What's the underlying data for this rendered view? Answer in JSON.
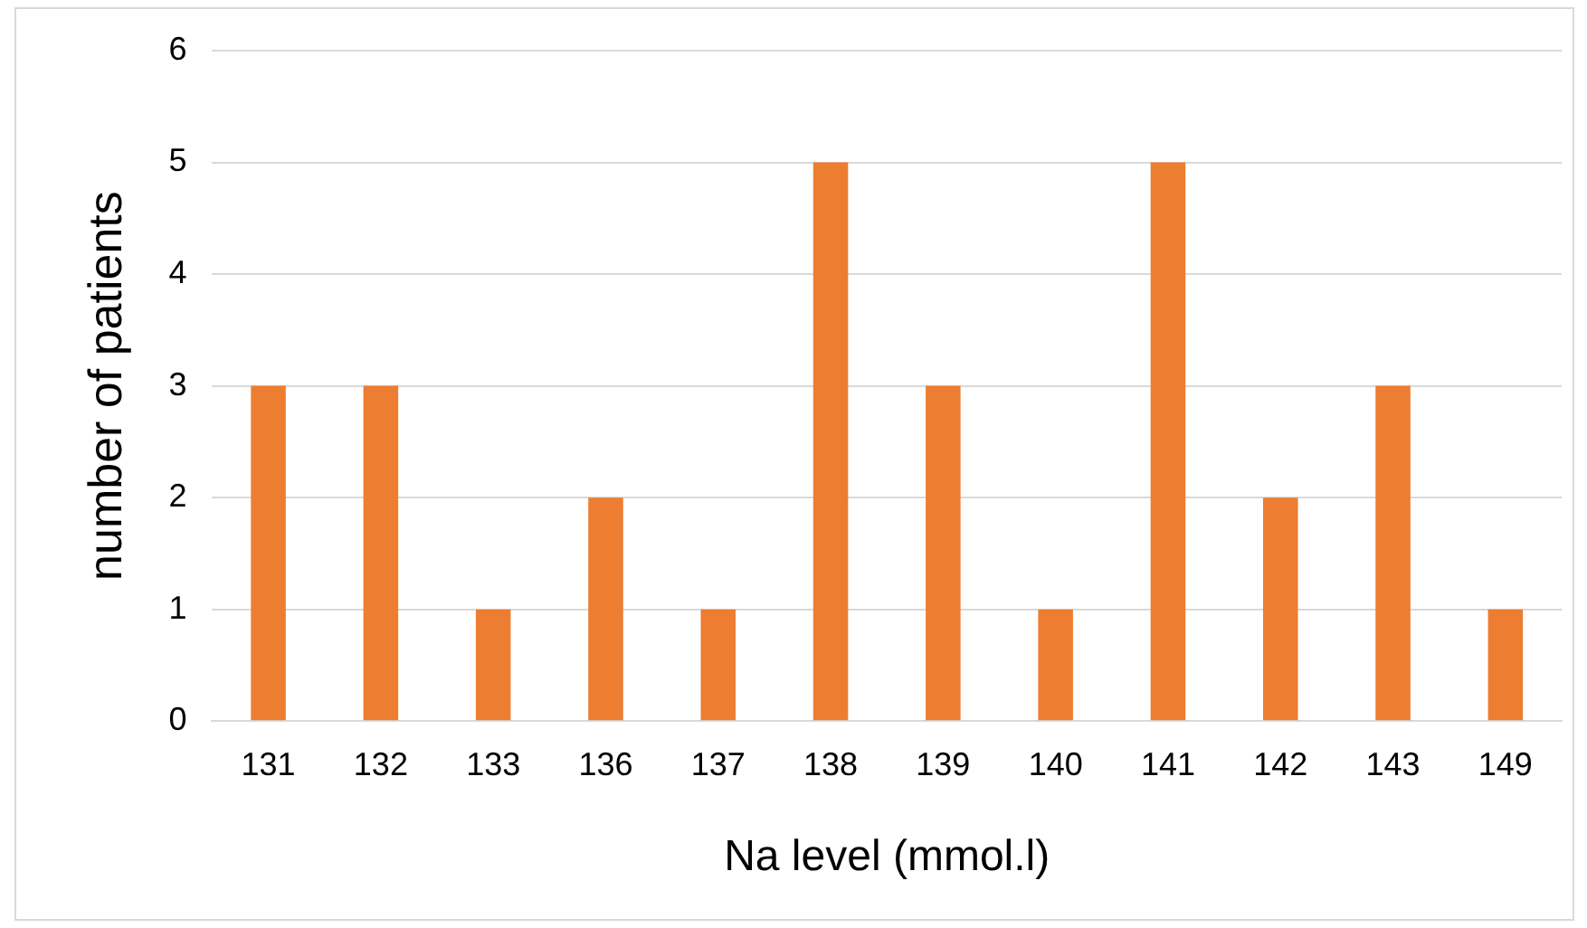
{
  "chart_data": {
    "type": "bar",
    "xlabel": "Na level (mmol.l)",
    "ylabel": "number of patients",
    "categories": [
      "131",
      "132",
      "133",
      "136",
      "137",
      "138",
      "139",
      "140",
      "141",
      "142",
      "143",
      "149"
    ],
    "values": [
      3,
      3,
      1,
      2,
      1,
      5,
      3,
      1,
      5,
      2,
      3,
      1
    ],
    "color": "#ed7d31",
    "ylim": [
      0,
      6
    ],
    "yticks": [
      0,
      1,
      2,
      3,
      4,
      5,
      6
    ],
    "grid": "y",
    "legend": false
  }
}
